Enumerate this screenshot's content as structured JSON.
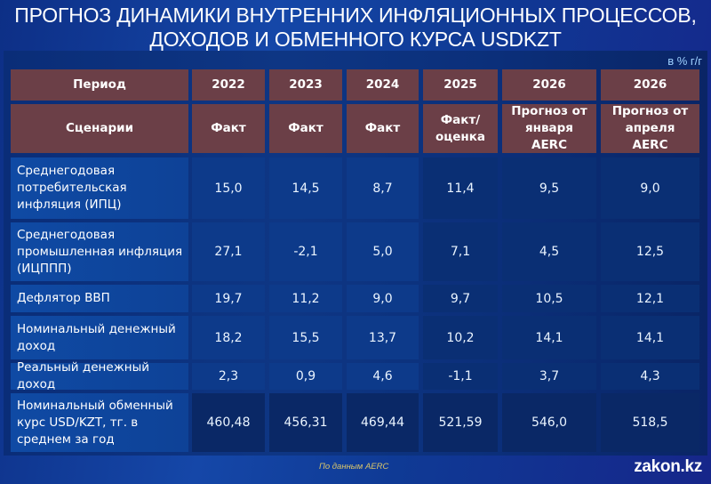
{
  "title": {
    "line1": "ПРОГНОЗ ДИНАМИКИ ВНУТРЕННИХ ИНФЛЯЦИОННЫХ ПРОЦЕССОВ,",
    "line2": "ДОХОДОВ И ОБМЕННОГО КУРСА USDKZT"
  },
  "unit": "в % г/г",
  "table": {
    "header_period": {
      "label": "Период",
      "years": [
        "2022",
        "2023",
        "2024",
        "2025",
        "2026",
        "2026"
      ]
    },
    "header_scenario": {
      "label": "Сценарии",
      "scenarios": [
        "Факт",
        "Факт",
        "Факт",
        "Факт/ оценка",
        "Прогноз от января AERC",
        "Прогноз от апреля AERC"
      ]
    },
    "rows": [
      {
        "label": "Среднегодовая потребительская инфляция (ИПЦ)",
        "values": [
          "15,0",
          "14,5",
          "8,7",
          "11,4",
          "9,5",
          "9,0"
        ]
      },
      {
        "label": "Среднегодовая промышленная инфляция (ИЦППП)",
        "values": [
          "27,1",
          "-2,1",
          "5,0",
          "7,1",
          "4,5",
          "12,5"
        ]
      },
      {
        "label": "Дефлятор ВВП",
        "values": [
          "19,7",
          "11,2",
          "9,0",
          "9,7",
          "10,5",
          "12,1"
        ]
      },
      {
        "label": "Номинальный денежный доход",
        "values": [
          "18,2",
          "15,5",
          "13,7",
          "10,2",
          "14,1",
          "14,1"
        ]
      },
      {
        "label": "Реальный денежный доход",
        "values": [
          "2,3",
          "0,9",
          "4,6",
          "-1,1",
          "3,7",
          "4,3"
        ]
      },
      {
        "label": "Номинальный обменный курс USD/KZT, тг. в среднем за год",
        "values": [
          "460,48",
          "456,31",
          "469,44",
          "521,59",
          "546,0",
          "518,5"
        ]
      }
    ]
  },
  "footer": {
    "source": "По данным AERC",
    "brand": "zakon.kz"
  },
  "colors": {
    "header_cell": "#6b3f47",
    "background": "#1547a8",
    "label_cell": "#0f4aa4",
    "value_cell": "#0d3a8a",
    "unit_text": "#9ed0ff",
    "source_text": "#d8c46b"
  }
}
